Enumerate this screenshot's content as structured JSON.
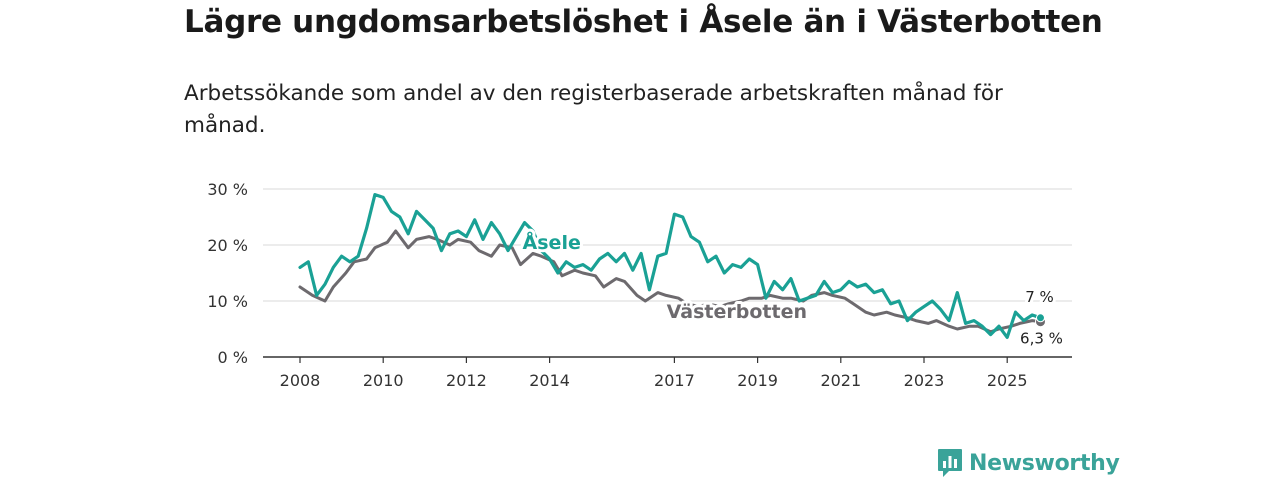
{
  "header": {
    "title": "Lägre ungdomsarbetslöshet i Åsele än i Västerbotten",
    "subtitle": "Arbetssökande som andel av den registerbaserade arbetskraften månad för månad."
  },
  "brand": {
    "name": "Newsworthy",
    "color": "#3aa399"
  },
  "chart_data": {
    "type": "line",
    "title": "Lägre ungdomsarbetslöshet i Åsele än i Västerbotten",
    "subtitle": "Arbetssökande som andel av den registerbaserade arbetskraften månad för månad.",
    "xlabel": "",
    "ylabel": "",
    "xlim": [
      2007.9,
      2026.3
    ],
    "ylim": [
      0,
      30
    ],
    "y_ticks": [
      0,
      10,
      20,
      30
    ],
    "y_tick_labels": [
      "0 %",
      "10 %",
      "20 %",
      "30 %"
    ],
    "x_ticks": [
      2008,
      2010,
      2012,
      2014,
      2017,
      2019,
      2021,
      2023,
      2025
    ],
    "x_tick_labels": [
      "2008",
      "2010",
      "2012",
      "2014",
      "2017",
      "2019",
      "2021",
      "2023",
      "2025"
    ],
    "grid": true,
    "series": [
      {
        "name": "Västerbotten",
        "color": "#6d6a6e",
        "x": [
          2008.0,
          2008.3,
          2008.6,
          2008.8,
          2009.1,
          2009.3,
          2009.6,
          2009.8,
          2010.1,
          2010.3,
          2010.6,
          2010.8,
          2011.1,
          2011.3,
          2011.6,
          2011.8,
          2012.1,
          2012.3,
          2012.6,
          2012.8,
          2013.1,
          2013.3,
          2013.6,
          2013.8,
          2014.1,
          2014.3,
          2014.6,
          2014.8,
          2015.1,
          2015.3,
          2015.6,
          2015.8,
          2016.1,
          2016.3,
          2016.6,
          2016.8,
          2017.1,
          2017.3,
          2017.6,
          2017.8,
          2018.1,
          2018.3,
          2018.6,
          2018.8,
          2019.1,
          2019.3,
          2019.6,
          2019.8,
          2020.1,
          2020.3,
          2020.6,
          2020.8,
          2021.1,
          2021.3,
          2021.6,
          2021.8,
          2022.1,
          2022.3,
          2022.6,
          2022.8,
          2023.1,
          2023.3,
          2023.6,
          2023.8,
          2024.1,
          2024.3,
          2024.6,
          2024.8,
          2025.1,
          2025.3,
          2025.6,
          2025.8
        ],
        "values": [
          12.5,
          11.0,
          10.0,
          12.5,
          15.0,
          17.0,
          17.5,
          19.5,
          20.5,
          22.5,
          19.5,
          21.0,
          21.5,
          21.0,
          20.0,
          21.0,
          20.5,
          19.0,
          18.0,
          20.0,
          19.5,
          16.5,
          18.5,
          18.0,
          17.0,
          14.5,
          15.5,
          15.0,
          14.5,
          12.5,
          14.0,
          13.5,
          11.0,
          10.0,
          11.5,
          11.0,
          10.5,
          9.5,
          9.0,
          9.5,
          9.0,
          9.5,
          10.0,
          10.5,
          10.5,
          11.0,
          10.5,
          10.5,
          10.0,
          11.0,
          11.5,
          11.0,
          10.5,
          9.5,
          8.0,
          7.5,
          8.0,
          7.5,
          7.0,
          6.5,
          6.0,
          6.5,
          5.5,
          5.0,
          5.5,
          5.5,
          4.5,
          5.0,
          5.5,
          6.0,
          6.5,
          6.3
        ]
      },
      {
        "name": "Åsele",
        "color": "#1aa195",
        "x": [
          2008.0,
          2008.2,
          2008.4,
          2008.6,
          2008.8,
          2009.0,
          2009.2,
          2009.4,
          2009.6,
          2009.8,
          2010.0,
          2010.2,
          2010.4,
          2010.6,
          2010.8,
          2011.0,
          2011.2,
          2011.4,
          2011.6,
          2011.8,
          2012.0,
          2012.2,
          2012.4,
          2012.6,
          2012.8,
          2013.0,
          2013.2,
          2013.4,
          2013.6,
          2013.8,
          2014.0,
          2014.2,
          2014.4,
          2014.6,
          2014.8,
          2015.0,
          2015.2,
          2015.4,
          2015.6,
          2015.8,
          2016.0,
          2016.2,
          2016.4,
          2016.6,
          2016.8,
          2017.0,
          2017.2,
          2017.4,
          2017.6,
          2017.8,
          2018.0,
          2018.2,
          2018.4,
          2018.6,
          2018.8,
          2019.0,
          2019.2,
          2019.4,
          2019.6,
          2019.8,
          2020.0,
          2020.2,
          2020.4,
          2020.6,
          2020.8,
          2021.0,
          2021.2,
          2021.4,
          2021.6,
          2021.8,
          2022.0,
          2022.2,
          2022.4,
          2022.6,
          2022.8,
          2023.0,
          2023.2,
          2023.4,
          2023.6,
          2023.8,
          2024.0,
          2024.2,
          2024.4,
          2024.6,
          2024.8,
          2025.0,
          2025.2,
          2025.4,
          2025.6,
          2025.8
        ],
        "values": [
          16.0,
          17.0,
          11.0,
          13.0,
          16.0,
          18.0,
          17.0,
          18.0,
          23.0,
          29.0,
          28.5,
          26.0,
          25.0,
          22.0,
          26.0,
          24.5,
          23.0,
          19.0,
          22.0,
          22.5,
          21.5,
          24.5,
          21.0,
          24.0,
          22.0,
          19.0,
          21.5,
          24.0,
          22.5,
          19.0,
          17.5,
          15.0,
          17.0,
          16.0,
          16.5,
          15.5,
          17.5,
          18.5,
          17.0,
          18.5,
          15.5,
          18.5,
          12.0,
          18.0,
          18.5,
          25.5,
          25.0,
          21.5,
          20.5,
          17.0,
          18.0,
          15.0,
          16.5,
          16.0,
          17.5,
          16.5,
          10.5,
          13.5,
          12.0,
          14.0,
          10.0,
          10.5,
          11.0,
          13.5,
          11.5,
          12.0,
          13.5,
          12.5,
          13.0,
          11.5,
          12.0,
          9.5,
          10.0,
          6.5,
          8.0,
          9.0,
          10.0,
          8.5,
          6.5,
          11.5,
          6.0,
          6.5,
          5.5,
          4.0,
          5.5,
          3.5,
          8.0,
          6.5,
          7.5,
          7.0
        ]
      }
    ],
    "annotations": [
      {
        "text": "Åsele",
        "series": "Åsele"
      },
      {
        "text": "Västerbotten",
        "series": "Västerbotten"
      },
      {
        "text": "7 %",
        "series": "Åsele",
        "value": 7
      },
      {
        "text": "6,3 %",
        "series": "Västerbotten",
        "value": 6.3
      }
    ]
  }
}
